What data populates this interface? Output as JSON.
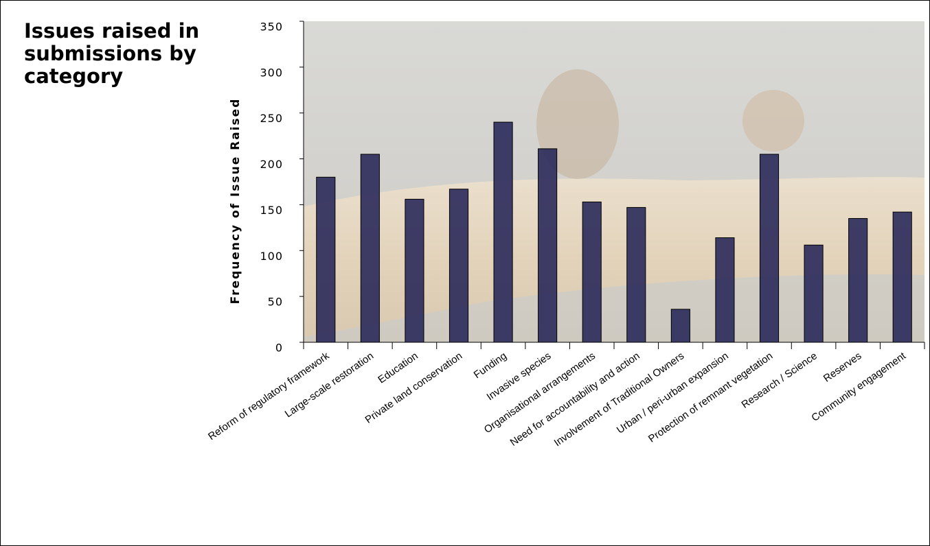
{
  "chart_data": {
    "type": "bar",
    "title": "Issues raised in submissions by category",
    "y_label": "Frequency of Issue Raised",
    "categories": [
      "Reform of regulatory framework",
      "Large-scale restoration",
      "Education",
      "Private land conservation",
      "Funding",
      "Invasive species",
      "Organisational arrangements",
      "Need for accountability and action",
      "Involvement of Traditional Owners",
      "Urban / peri-urban expansion",
      "Protection of remnant vegetation",
      "Research / Science",
      "Reserves",
      "Community engagement"
    ],
    "values": [
      180,
      205,
      156,
      167,
      240,
      211,
      153,
      147,
      36,
      114,
      205,
      106,
      135,
      142
    ],
    "color": "#252558",
    "ylim": [
      0,
      350
    ],
    "yticks": [
      0,
      50,
      100,
      150,
      200,
      250,
      300,
      350
    ],
    "grid": false
  }
}
